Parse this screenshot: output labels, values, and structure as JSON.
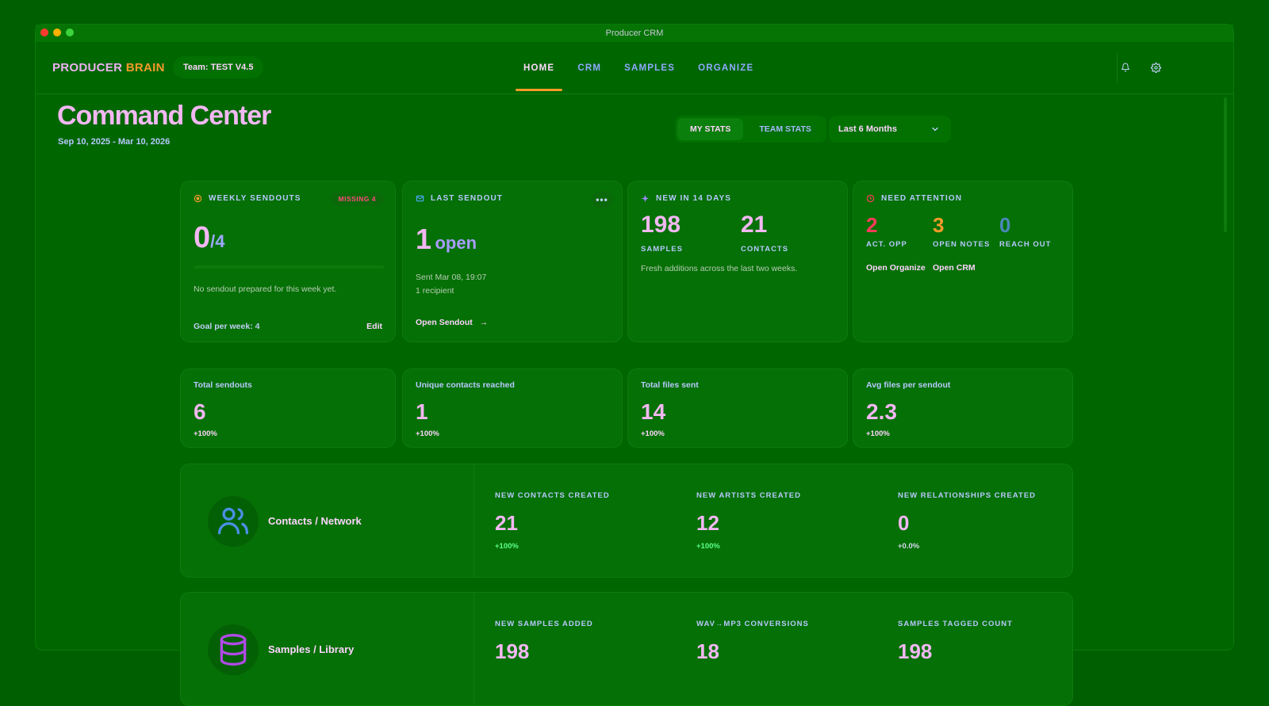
{
  "window": {
    "title": "Producer CRM"
  },
  "nav": {
    "brand_part1": "PRODUCER",
    "brand_part2": "BRAIN",
    "team_label": "Team: TEST V4.5",
    "tabs": [
      {
        "label": "HOME",
        "active": true
      },
      {
        "label": "CRM",
        "active": false
      },
      {
        "label": "SAMPLES",
        "active": false
      },
      {
        "label": "ORGANIZE",
        "active": false
      }
    ],
    "icons": [
      "bell-icon",
      "gear-icon"
    ]
  },
  "header": {
    "title": "Command Center",
    "date_range": "Sep 10, 2025 - Mar 10, 2026",
    "stats_toggle": [
      "MY STATS",
      "TEAM STATS"
    ],
    "stats_toggle_active": "MY STATS",
    "range_select": "Last 6 Months"
  },
  "cards": {
    "weekly": {
      "label": "WEEKLY SENDOUTS",
      "badge": "MISSING 4",
      "value": "0",
      "goal_fraction": "/4",
      "progress": 0,
      "note": "No sendout prepared for this week yet.",
      "goal_text": "Goal per week: 4",
      "edit": "Edit"
    },
    "last": {
      "label": "LAST SENDOUT",
      "value": "1",
      "value_suffix": "open",
      "sent": "Sent Mar 08, 19:07",
      "recipients": "1 recipient",
      "link": "Open Sendout",
      "link_arrow": "→"
    },
    "new14": {
      "label": "NEW IN 14 DAYS",
      "samples_value": "198",
      "samples_label": "SAMPLES",
      "contacts_value": "21",
      "contacts_label": "CONTACTS",
      "note": "Fresh additions across the last two weeks."
    },
    "attention": {
      "label": "NEED ATTENTION",
      "items": [
        {
          "value": "2",
          "label": "ACT. OPP",
          "color": "#ff3b5c"
        },
        {
          "value": "3",
          "label": "OPEN NOTES",
          "color": "#f59a2a"
        },
        {
          "value": "0",
          "label": "REACH OUT",
          "color": "#4a87b8"
        }
      ],
      "link1": "Open Organize",
      "link2": "Open CRM"
    }
  },
  "kpis": [
    {
      "label": "Total sendouts",
      "value": "6",
      "delta": "+100%"
    },
    {
      "label": "Unique contacts reached",
      "value": "1",
      "delta": "+100%"
    },
    {
      "label": "Total files sent",
      "value": "14",
      "delta": "+100%"
    },
    {
      "label": "Avg files per sendout",
      "value": "2.3",
      "delta": "+100%"
    }
  ],
  "sections": {
    "contacts": {
      "title": "Contacts / Network",
      "icon": "users-icon",
      "icon_color": "#4a8fe6",
      "stats": [
        {
          "label": "NEW CONTACTS CREATED",
          "value": "21",
          "delta": "+100%",
          "delta_color": "#5dff8a"
        },
        {
          "label": "NEW ARTISTS CREATED",
          "value": "12",
          "delta": "+100%",
          "delta_color": "#5dff8a"
        },
        {
          "label": "NEW RELATIONSHIPS CREATED",
          "value": "0",
          "delta": "+0.0%",
          "delta_color": "#d8d8f0"
        }
      ]
    },
    "samples": {
      "title": "Samples / Library",
      "icon": "database-icon",
      "icon_color": "#b04ae6",
      "stats": [
        {
          "label": "NEW SAMPLES ADDED",
          "value": "198"
        },
        {
          "label": "WAV→MP3 CONVERSIONS",
          "value": "18"
        },
        {
          "label": "SAMPLES TAGGED COUNT",
          "value": "198"
        }
      ]
    }
  }
}
